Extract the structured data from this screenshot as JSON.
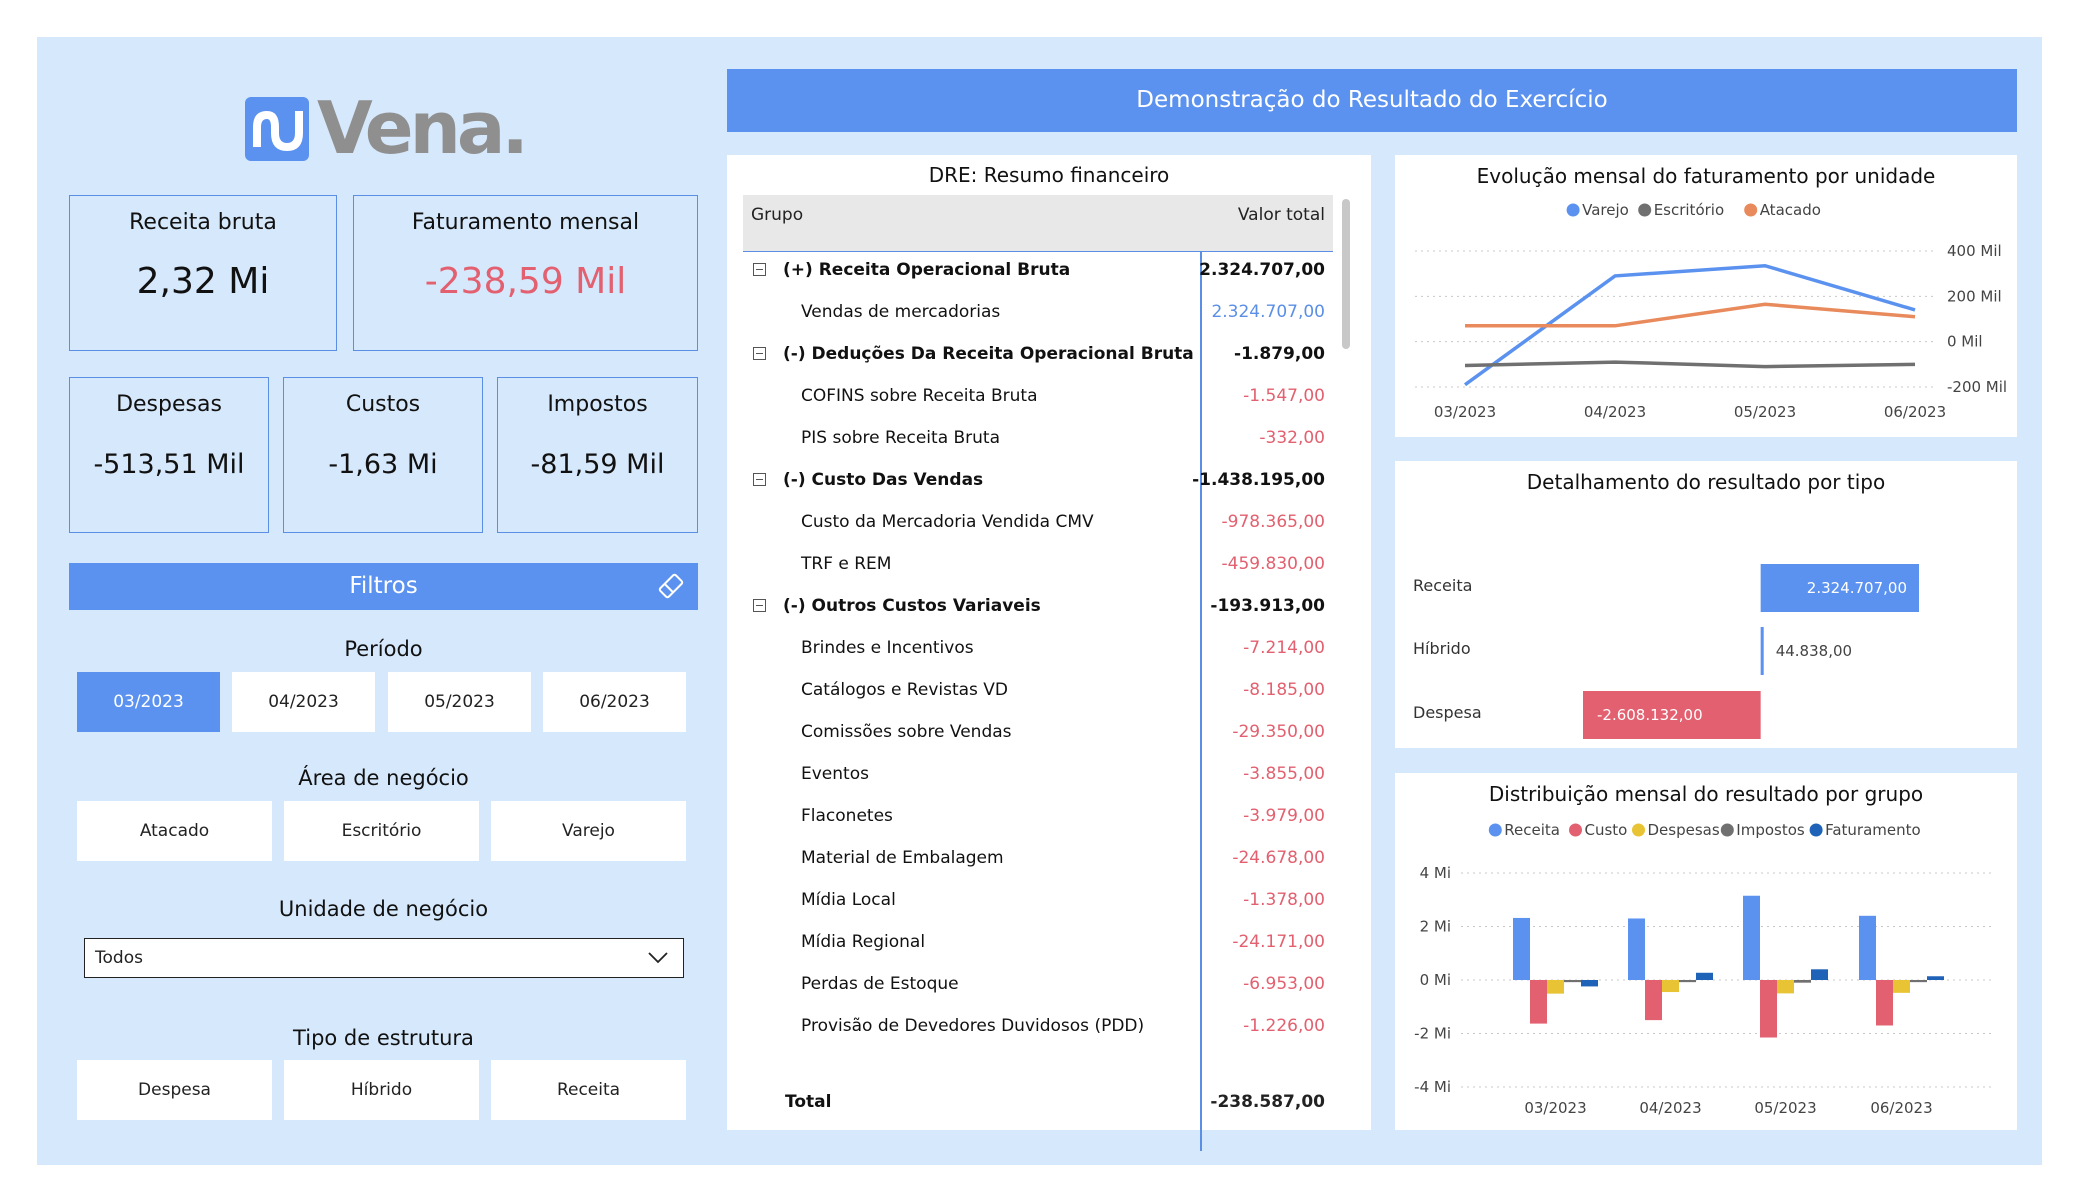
{
  "brand": {
    "logo_text": "Vena."
  },
  "kpis": {
    "receita_bruta": {
      "label": "Receita bruta",
      "value": "2,32 Mi"
    },
    "faturamento": {
      "label": "Faturamento mensal",
      "value": "-238,59 Mil"
    },
    "despesas": {
      "label": "Despesas",
      "value": "-513,51 Mil"
    },
    "custos": {
      "label": "Custos",
      "value": "-1,63 Mi"
    },
    "impostos": {
      "label": "Impostos",
      "value": "-81,59 Mil"
    }
  },
  "filters": {
    "title": "Filtros",
    "periodo": {
      "label": "Período",
      "options": [
        "03/2023",
        "04/2023",
        "05/2023",
        "06/2023"
      ],
      "selected": "03/2023"
    },
    "area": {
      "label": "Área de negócio",
      "options": [
        "Atacado",
        "Escritório",
        "Varejo"
      ]
    },
    "unidade": {
      "label": "Unidade de negócio",
      "value": "Todos"
    },
    "estrutura": {
      "label": "Tipo de estrutura",
      "options": [
        "Despesa",
        "Híbrido",
        "Receita"
      ]
    }
  },
  "colors": {
    "accent": "#5b92ef",
    "negative": "#e2606f",
    "bg": "#d6e8fb"
  },
  "dre": {
    "header": "Demonstração do Resultado do Exercício",
    "table_title": "DRE: Resumo financeiro",
    "col_group": "Grupo",
    "col_value": "Valor total",
    "rows": [
      {
        "type": "group",
        "name": "(+) Receita Operacional Bruta",
        "value": "2.324.707,00"
      },
      {
        "type": "item",
        "name": "Vendas de mercadorias",
        "value": "2.324.707,00",
        "sign": "pos"
      },
      {
        "type": "group",
        "name": "(-) Deduções Da Receita Operacional Bruta",
        "value": "-1.879,00"
      },
      {
        "type": "item",
        "name": "COFINS sobre Receita Bruta",
        "value": "-1.547,00",
        "sign": "neg"
      },
      {
        "type": "item",
        "name": "PIS sobre Receita Bruta",
        "value": "-332,00",
        "sign": "neg"
      },
      {
        "type": "group",
        "name": "(-) Custo Das Vendas",
        "value": "-1.438.195,00"
      },
      {
        "type": "item",
        "name": "Custo da Mercadoria Vendida CMV",
        "value": "-978.365,00",
        "sign": "neg"
      },
      {
        "type": "item",
        "name": "TRF e REM",
        "value": "-459.830,00",
        "sign": "neg"
      },
      {
        "type": "group",
        "name": "(-) Outros Custos Variaveis",
        "value": "-193.913,00"
      },
      {
        "type": "item",
        "name": "Brindes e Incentivos",
        "value": "-7.214,00",
        "sign": "neg"
      },
      {
        "type": "item",
        "name": "Catálogos e Revistas VD",
        "value": "-8.185,00",
        "sign": "neg"
      },
      {
        "type": "item",
        "name": "Comissões sobre Vendas",
        "value": "-29.350,00",
        "sign": "neg"
      },
      {
        "type": "item",
        "name": "Eventos",
        "value": "-3.855,00",
        "sign": "neg"
      },
      {
        "type": "item",
        "name": "Flaconetes",
        "value": "-3.979,00",
        "sign": "neg"
      },
      {
        "type": "item",
        "name": "Material de Embalagem",
        "value": "-24.678,00",
        "sign": "neg"
      },
      {
        "type": "item",
        "name": "Mídia Local",
        "value": "-1.378,00",
        "sign": "neg"
      },
      {
        "type": "item",
        "name": "Mídia Regional",
        "value": "-24.171,00",
        "sign": "neg"
      },
      {
        "type": "item",
        "name": "Perdas de Estoque",
        "value": "-6.953,00",
        "sign": "neg"
      },
      {
        "type": "item",
        "name": "Provisão de Devedores Duvidosos (PDD)",
        "value": "-1.226,00",
        "sign": "neg"
      }
    ],
    "total_label": "Total",
    "total_value": "-238.587,00"
  },
  "chart_data": [
    {
      "type": "line",
      "title": "Evolução mensal do faturamento por unidade",
      "categories": [
        "03/2023",
        "04/2023",
        "05/2023",
        "06/2023"
      ],
      "y_ticks": [
        "400 Mil",
        "200 Mil",
        "0 Mil",
        "-200 Mil"
      ],
      "ylim": [
        -200000,
        400000
      ],
      "legend": "top-center",
      "series": [
        {
          "name": "Varejo",
          "color": "#5b92ef",
          "values": [
            -190000,
            290000,
            335000,
            140000
          ]
        },
        {
          "name": "Escritório",
          "color": "#707070",
          "values": [
            -105000,
            -90000,
            -110000,
            -100000
          ]
        },
        {
          "name": "Atacado",
          "color": "#e88a5c",
          "values": [
            70000,
            70000,
            165000,
            110000
          ]
        }
      ]
    },
    {
      "type": "bar",
      "title": "Detalhamento do resultado por tipo",
      "categories": [
        "Receita",
        "Híbrido",
        "Despesa"
      ],
      "values": [
        2324707,
        44838,
        -2608132
      ],
      "labels": [
        "2.324.707,00",
        "44.838,00",
        "-2.608.132,00"
      ],
      "colors": [
        "#5b92ef",
        "#5b92ef",
        "#e2606f"
      ]
    },
    {
      "type": "bar",
      "title": "Distribuição mensal do resultado por grupo",
      "categories": [
        "03/2023",
        "04/2023",
        "05/2023",
        "06/2023"
      ],
      "y_ticks": [
        "4 Mi",
        "2 Mi",
        "0 Mi",
        "-2 Mi",
        "-4 Mi"
      ],
      "ylim": [
        -4000000,
        4000000
      ],
      "legend": "top-center",
      "series": [
        {
          "name": "Receita",
          "color": "#5b92ef",
          "values": [
            2320000,
            2300000,
            3150000,
            2400000
          ]
        },
        {
          "name": "Custo",
          "color": "#e2606f",
          "values": [
            -1630000,
            -1500000,
            -2150000,
            -1700000
          ]
        },
        {
          "name": "Despesas",
          "color": "#e8c435",
          "values": [
            -510000,
            -450000,
            -500000,
            -480000
          ]
        },
        {
          "name": "Impostos",
          "color": "#707070",
          "values": [
            -80000,
            -80000,
            -100000,
            -80000
          ]
        },
        {
          "name": "Faturamento",
          "color": "#1f63b8",
          "values": [
            -240000,
            270000,
            400000,
            140000
          ]
        }
      ]
    }
  ]
}
